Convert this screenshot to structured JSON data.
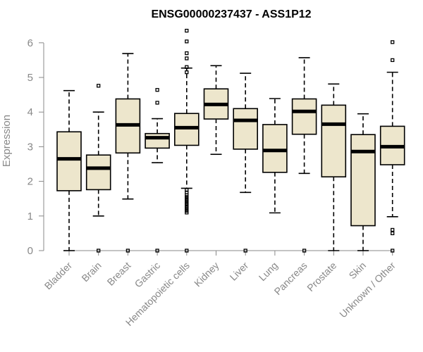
{
  "chart_data": {
    "type": "boxplot",
    "title": "ENSG00000237437 - ASS1P12",
    "xlabel": "",
    "ylabel": "Expression",
    "ylim": [
      0,
      6.3
    ],
    "yticks": [
      "0",
      "1",
      "2",
      "3",
      "4",
      "5",
      "6"
    ],
    "colors": {
      "box_fill": "#ede6cc",
      "box_stroke": "#000000",
      "axis": "#888888"
    },
    "categories": [
      "Bladder",
      "Brain",
      "Breast",
      "Gastric",
      "Hematopoietic cells",
      "Kidney",
      "Liver",
      "Lung",
      "Pancreas",
      "Prostate",
      "Skin",
      "Unknown / Other"
    ],
    "boxes": [
      {
        "category": "Bladder",
        "min": 0.0,
        "q1": 1.73,
        "median": 2.65,
        "q3": 3.43,
        "max": 4.62,
        "outliers": []
      },
      {
        "category": "Brain",
        "min": 1.0,
        "q1": 1.76,
        "median": 2.38,
        "q3": 2.76,
        "max": 4.0,
        "outliers": [
          4.76,
          0.0
        ]
      },
      {
        "category": "Breast",
        "min": 1.49,
        "q1": 2.82,
        "median": 3.63,
        "q3": 4.38,
        "max": 5.69,
        "outliers": [
          0.0
        ]
      },
      {
        "category": "Gastric",
        "min": 2.54,
        "q1": 2.96,
        "median": 3.26,
        "q3": 3.38,
        "max": 3.81,
        "outliers": [
          4.64,
          4.27,
          0.0
        ]
      },
      {
        "category": "Hematopoietic cells",
        "min": 1.8,
        "q1": 3.04,
        "median": 3.55,
        "q3": 3.96,
        "max": 5.27,
        "outliers": [
          6.35,
          6.04,
          5.7,
          5.55,
          5.3,
          5.15,
          1.75,
          1.68,
          1.6,
          1.55,
          1.5,
          1.45,
          1.4,
          1.35,
          1.3,
          1.25,
          1.2,
          1.15,
          1.1,
          0.0
        ]
      },
      {
        "category": "Kidney",
        "min": 2.78,
        "q1": 3.8,
        "median": 4.22,
        "q3": 4.67,
        "max": 5.34,
        "outliers": []
      },
      {
        "category": "Liver",
        "min": 1.68,
        "q1": 2.93,
        "median": 3.76,
        "q3": 4.1,
        "max": 5.12,
        "outliers": [
          0.0
        ]
      },
      {
        "category": "Lung",
        "min": 1.09,
        "q1": 2.26,
        "median": 2.89,
        "q3": 3.64,
        "max": 4.39,
        "outliers": []
      },
      {
        "category": "Pancreas",
        "min": 2.23,
        "q1": 3.36,
        "median": 4.02,
        "q3": 4.38,
        "max": 5.57,
        "outliers": [
          0.0
        ]
      },
      {
        "category": "Prostate",
        "min": 0.0,
        "q1": 2.13,
        "median": 3.65,
        "q3": 4.2,
        "max": 4.81,
        "outliers": []
      },
      {
        "category": "Skin",
        "min": 0.0,
        "q1": 0.72,
        "median": 2.86,
        "q3": 3.35,
        "max": 3.95,
        "outliers": []
      },
      {
        "category": "Unknown / Other",
        "min": 0.98,
        "q1": 2.48,
        "median": 3.0,
        "q3": 3.59,
        "max": 5.15,
        "outliers": [
          6.02,
          5.5,
          0.6,
          0.5,
          0.0
        ]
      }
    ]
  }
}
